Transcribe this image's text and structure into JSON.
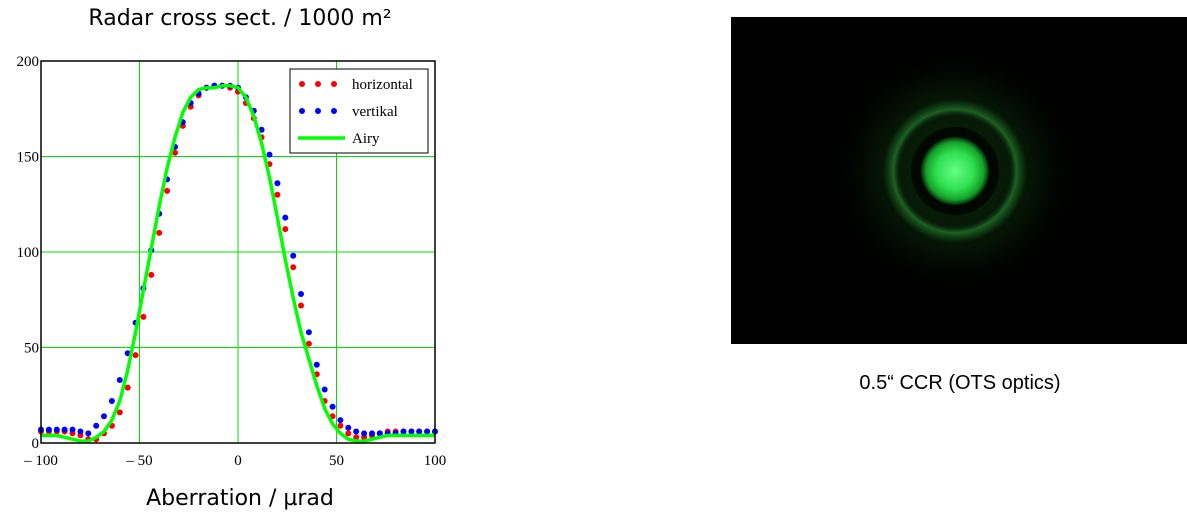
{
  "chart_data": {
    "type": "line",
    "title": "Radar cross sect. / 1000 m²",
    "xlabel": "Aberration / µrad",
    "ylabel": "",
    "xlim": [
      -100,
      100
    ],
    "ylim": [
      0,
      200
    ],
    "x_ticks": [
      -100,
      -50,
      0,
      50,
      100
    ],
    "y_ticks": [
      0,
      50,
      100,
      150,
      200
    ],
    "x_tick_labels": [
      "– 100",
      "– 50",
      "0",
      "50",
      "100"
    ],
    "y_tick_labels": [
      "0",
      "50",
      "100",
      "150",
      "200"
    ],
    "grid": true,
    "legend_position": "top-right",
    "series": [
      {
        "name": "horizontal",
        "style": "dotted",
        "color": "#ff0000",
        "x": [
          -100,
          -96,
          -92,
          -88,
          -84,
          -80,
          -76,
          -72,
          -68,
          -64,
          -60,
          -56,
          -52,
          -48,
          -44,
          -40,
          -36,
          -32,
          -28,
          -24,
          -20,
          -16,
          -12,
          -8,
          -4,
          0,
          4,
          8,
          12,
          16,
          20,
          24,
          28,
          32,
          36,
          40,
          44,
          48,
          52,
          56,
          60,
          64,
          68,
          72,
          76,
          80,
          84,
          88,
          92,
          96,
          100
        ],
        "y": [
          6,
          6,
          6,
          6,
          5,
          4,
          2,
          2,
          5,
          9,
          16,
          29,
          46,
          66,
          88,
          110,
          132,
          152,
          166,
          176,
          182,
          186,
          187,
          187,
          186,
          184,
          178,
          170,
          160,
          146,
          130,
          112,
          92,
          72,
          52,
          36,
          22,
          14,
          9,
          5,
          3,
          3,
          4,
          5,
          6,
          6,
          6,
          6,
          6,
          6,
          6
        ]
      },
      {
        "name": "vertikal",
        "style": "dotted",
        "color": "#0000ff",
        "x": [
          -100,
          -96,
          -92,
          -88,
          -84,
          -80,
          -76,
          -72,
          -68,
          -64,
          -60,
          -56,
          -52,
          -48,
          -44,
          -40,
          -36,
          -32,
          -28,
          -24,
          -20,
          -16,
          -12,
          -8,
          -4,
          0,
          4,
          8,
          12,
          16,
          20,
          24,
          28,
          32,
          36,
          40,
          44,
          48,
          52,
          56,
          60,
          64,
          68,
          72,
          76,
          80,
          84,
          88,
          92,
          96,
          100
        ],
        "y": [
          7,
          7,
          7,
          7,
          7,
          6,
          5,
          9,
          14,
          22,
          33,
          47,
          63,
          81,
          101,
          120,
          138,
          155,
          168,
          178,
          183,
          186,
          187,
          187,
          187,
          186,
          181,
          174,
          164,
          151,
          136,
          118,
          98,
          78,
          58,
          41,
          28,
          19,
          12,
          8,
          6,
          5,
          5,
          5,
          5,
          5,
          6,
          6,
          6,
          6,
          6
        ]
      },
      {
        "name": "Airy",
        "style": "solid",
        "color": "#00ff00",
        "x": [
          -100,
          -96,
          -92,
          -88,
          -84,
          -80,
          -76,
          -72,
          -68,
          -64,
          -60,
          -56,
          -52,
          -48,
          -44,
          -40,
          -36,
          -32,
          -28,
          -24,
          -20,
          -16,
          -12,
          -8,
          -4,
          0,
          4,
          8,
          12,
          16,
          20,
          24,
          28,
          32,
          36,
          40,
          44,
          48,
          52,
          56,
          60,
          64,
          68,
          72,
          76,
          80,
          84,
          88,
          92,
          96,
          100
        ],
        "y": [
          4,
          4,
          4,
          3,
          2,
          1,
          1,
          3,
          6,
          12,
          22,
          38,
          58,
          80,
          102,
          124,
          144,
          160,
          173,
          181,
          185,
          186,
          186,
          187,
          187,
          186,
          181,
          171,
          157,
          139,
          118,
          96,
          76,
          58,
          44,
          30,
          18,
          10,
          5,
          2,
          1,
          1,
          2,
          3,
          4,
          4,
          4,
          4,
          4,
          4,
          4
        ]
      }
    ]
  },
  "image_panel": {
    "caption": "0.5“ CCR (OTS optics)",
    "background": "#000000",
    "spot_color": "#33ff66"
  }
}
